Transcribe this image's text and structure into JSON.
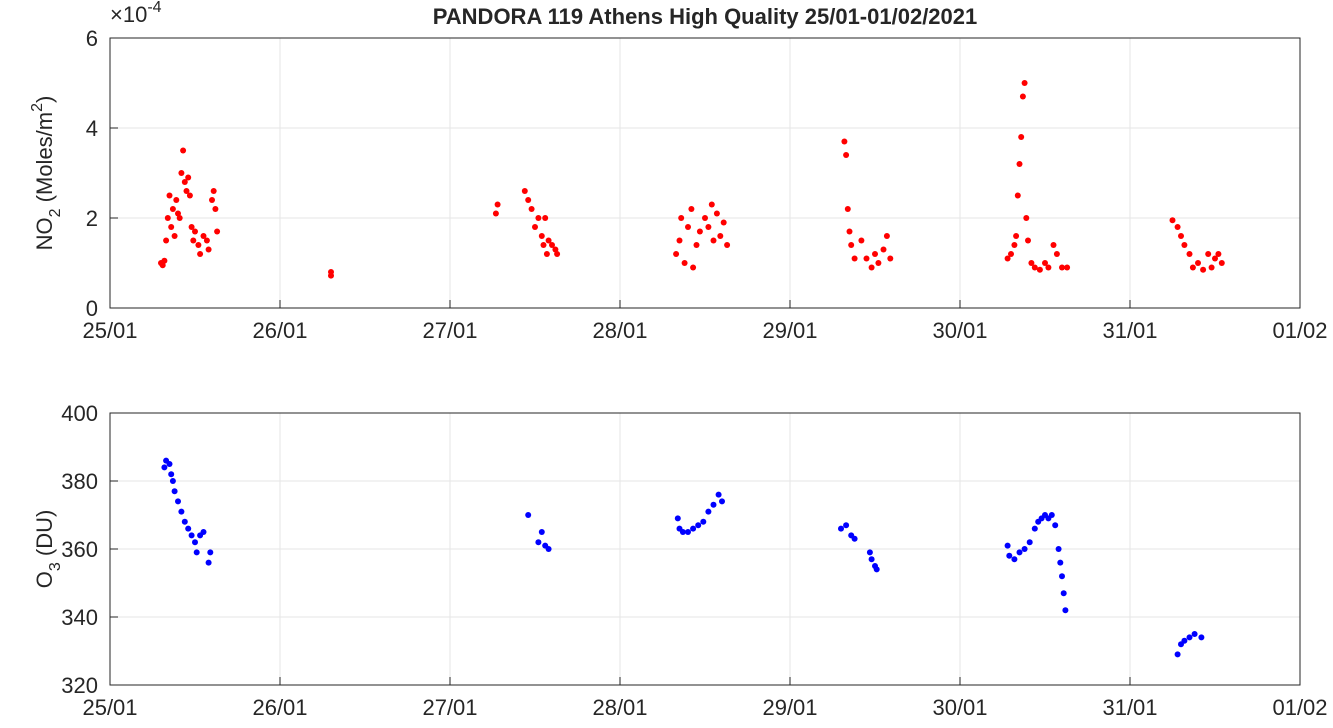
{
  "chart_data": [
    {
      "type": "scatter",
      "title": "PANDORA 119 Athens High Quality 25/01-01/02/2021",
      "ylabel_parts": [
        "NO",
        "2",
        " (Moles/m",
        "2",
        ")"
      ],
      "y_multiplier": {
        "base": "×10",
        "exponent": "-4"
      },
      "color": "#ff0000",
      "grid": true,
      "xlim": [
        0,
        7
      ],
      "xticks": [
        {
          "value": 0,
          "label": "25/01"
        },
        {
          "value": 1,
          "label": "26/01"
        },
        {
          "value": 2,
          "label": "27/01"
        },
        {
          "value": 3,
          "label": "28/01"
        },
        {
          "value": 4,
          "label": "29/01"
        },
        {
          "value": 5,
          "label": "30/01"
        },
        {
          "value": 6,
          "label": "31/01"
        },
        {
          "value": 7,
          "label": "01/02"
        }
      ],
      "ylim": [
        0,
        6
      ],
      "yticks": [
        0,
        2,
        4,
        6
      ],
      "x": [
        0.3,
        0.31,
        0.32,
        0.33,
        0.34,
        0.35,
        0.36,
        0.37,
        0.38,
        0.39,
        0.4,
        0.41,
        0.42,
        0.43,
        0.44,
        0.45,
        0.46,
        0.47,
        0.48,
        0.49,
        0.5,
        0.52,
        0.53,
        0.55,
        0.57,
        0.58,
        0.6,
        0.61,
        0.62,
        0.63,
        1.3,
        1.3,
        2.27,
        2.28,
        2.44,
        2.46,
        2.48,
        2.5,
        2.52,
        2.54,
        2.55,
        2.56,
        2.57,
        2.58,
        2.6,
        2.62,
        2.63,
        3.33,
        3.35,
        3.36,
        3.38,
        3.4,
        3.42,
        3.43,
        3.45,
        3.47,
        3.5,
        3.52,
        3.54,
        3.55,
        3.57,
        3.59,
        3.61,
        3.63,
        4.32,
        4.33,
        4.34,
        4.35,
        4.36,
        4.38,
        4.42,
        4.45,
        4.48,
        4.5,
        4.52,
        4.55,
        4.57,
        4.59,
        5.28,
        5.3,
        5.32,
        5.33,
        5.34,
        5.35,
        5.36,
        5.37,
        5.38,
        5.39,
        5.4,
        5.42,
        5.44,
        5.47,
        5.5,
        5.52,
        5.55,
        5.57,
        5.6,
        5.63,
        6.25,
        6.28,
        6.3,
        6.32,
        6.35,
        6.37,
        6.4,
        6.43,
        6.46,
        6.48,
        6.5,
        6.52,
        6.54
      ],
      "values": [
        1.0,
        0.95,
        1.05,
        1.5,
        2.0,
        2.5,
        1.8,
        2.2,
        1.6,
        2.4,
        2.1,
        2.0,
        3.0,
        3.5,
        2.8,
        2.6,
        2.9,
        2.5,
        1.8,
        1.5,
        1.7,
        1.4,
        1.2,
        1.6,
        1.5,
        1.3,
        2.4,
        2.6,
        2.2,
        1.7,
        0.8,
        0.72,
        2.1,
        2.3,
        2.6,
        2.4,
        2.2,
        1.8,
        2.0,
        1.6,
        1.4,
        2.0,
        1.2,
        1.5,
        1.4,
        1.3,
        1.2,
        1.2,
        1.5,
        2.0,
        1.0,
        1.8,
        2.2,
        0.9,
        1.4,
        1.7,
        2.0,
        1.8,
        2.3,
        1.5,
        2.1,
        1.6,
        1.9,
        1.4,
        3.7,
        3.4,
        2.2,
        1.7,
        1.4,
        1.1,
        1.5,
        1.1,
        0.9,
        1.2,
        1.0,
        1.3,
        1.6,
        1.1,
        1.1,
        1.2,
        1.4,
        1.6,
        2.5,
        3.2,
        3.8,
        4.7,
        5.0,
        2.0,
        1.5,
        1.0,
        0.9,
        0.85,
        1.0,
        0.9,
        1.4,
        1.2,
        0.9,
        0.9,
        1.95,
        1.8,
        1.6,
        1.4,
        1.2,
        0.9,
        1.0,
        0.85,
        1.2,
        0.9,
        1.1,
        1.2,
        1.0
      ]
    },
    {
      "type": "scatter",
      "ylabel_parts": [
        "O",
        "3",
        " (DU)"
      ],
      "color": "#0000ff",
      "grid": true,
      "xlim": [
        0,
        7
      ],
      "xticks": [
        {
          "value": 0,
          "label": "25/01"
        },
        {
          "value": 1,
          "label": "26/01"
        },
        {
          "value": 2,
          "label": "27/01"
        },
        {
          "value": 3,
          "label": "28/01"
        },
        {
          "value": 4,
          "label": "29/01"
        },
        {
          "value": 5,
          "label": "30/01"
        },
        {
          "value": 6,
          "label": "31/01"
        },
        {
          "value": 7,
          "label": "01/02"
        }
      ],
      "ylim": [
        320,
        400
      ],
      "yticks": [
        320,
        340,
        360,
        380,
        400
      ],
      "x": [
        0.32,
        0.33,
        0.35,
        0.36,
        0.37,
        0.38,
        0.4,
        0.42,
        0.44,
        0.46,
        0.48,
        0.5,
        0.51,
        0.53,
        0.55,
        0.58,
        0.59,
        2.46,
        2.52,
        2.54,
        2.56,
        2.58,
        3.34,
        3.35,
        3.37,
        3.4,
        3.43,
        3.46,
        3.49,
        3.52,
        3.55,
        3.58,
        3.6,
        4.3,
        4.33,
        4.36,
        4.38,
        4.47,
        4.48,
        4.5,
        4.51,
        5.28,
        5.29,
        5.32,
        5.35,
        5.38,
        5.41,
        5.44,
        5.46,
        5.48,
        5.5,
        5.52,
        5.54,
        5.56,
        5.58,
        5.59,
        5.6,
        5.61,
        5.62,
        6.28,
        6.3,
        6.32,
        6.35,
        6.38,
        6.42
      ],
      "values": [
        384,
        386,
        385,
        382,
        380,
        377,
        374,
        371,
        368,
        366,
        364,
        362,
        359,
        364,
        365,
        356,
        359,
        370,
        362,
        365,
        361,
        360,
        369,
        366,
        365,
        365,
        366,
        367,
        368,
        371,
        373,
        376,
        374,
        366,
        367,
        364,
        363,
        359,
        357,
        355,
        354,
        361,
        358,
        357,
        359,
        360,
        362,
        366,
        368,
        369,
        370,
        369,
        370,
        367,
        360,
        356,
        352,
        347,
        342,
        329,
        332,
        333,
        334,
        335,
        334
      ]
    }
  ]
}
